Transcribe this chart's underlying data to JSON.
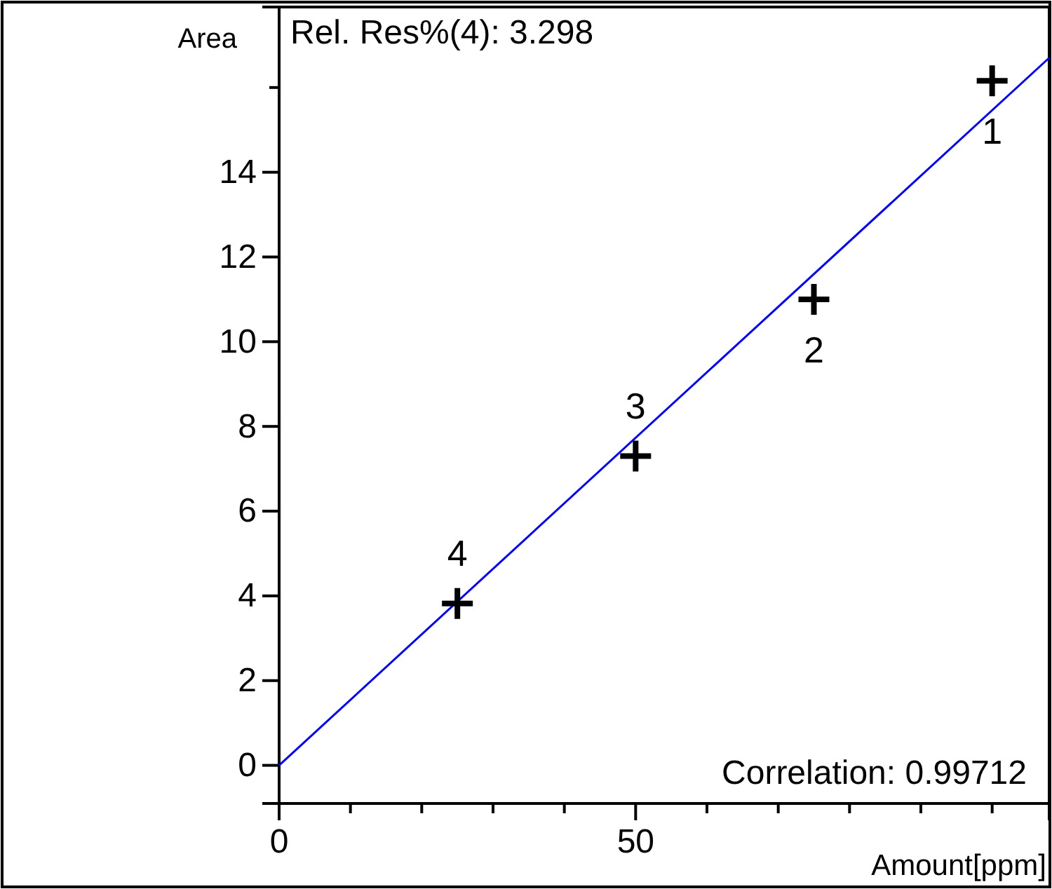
{
  "chart_data": {
    "type": "scatter",
    "xlabel": "Amount[ppm]",
    "ylabel": "Area",
    "xlim": [
      0,
      108
    ],
    "ylim": [
      -0.9,
      17.9
    ],
    "xticks": [
      0,
      {
        "value": 10,
        "label": null
      },
      {
        "value": 20,
        "label": null
      },
      {
        "value": 30,
        "label": null
      },
      {
        "value": 40,
        "label": null
      },
      50,
      {
        "value": 60,
        "label": null
      },
      {
        "value": 70,
        "label": null
      },
      {
        "value": 80,
        "label": null
      },
      {
        "value": 90,
        "label": null
      },
      {
        "value": 100,
        "label": null
      }
    ],
    "yticks": [
      0,
      2,
      4,
      6,
      8,
      10,
      12,
      14,
      {
        "value": 16,
        "label": null
      }
    ],
    "grid": false,
    "series": [
      {
        "type": "line",
        "color": "#0000ff",
        "x": [
          0,
          108
        ],
        "values": [
          0,
          16.7
        ],
        "line_style": "solid"
      },
      {
        "color": "#000000",
        "x": [
          25,
          50,
          75,
          100
        ],
        "values": [
          3.82,
          7.3,
          11.0,
          16.16
        ],
        "marker": "cross"
      }
    ],
    "annotations": [
      "Rel. Res%(4): 3.298",
      "Correlation: 0.99712",
      {
        "text": "1",
        "x": 100,
        "y": 16.16
      },
      {
        "text": "2",
        "x": 75,
        "y": 11.0
      },
      {
        "text": "3",
        "x": 50,
        "y": 7.3
      },
      {
        "text": "4",
        "x": 25,
        "y": 3.82
      }
    ]
  }
}
